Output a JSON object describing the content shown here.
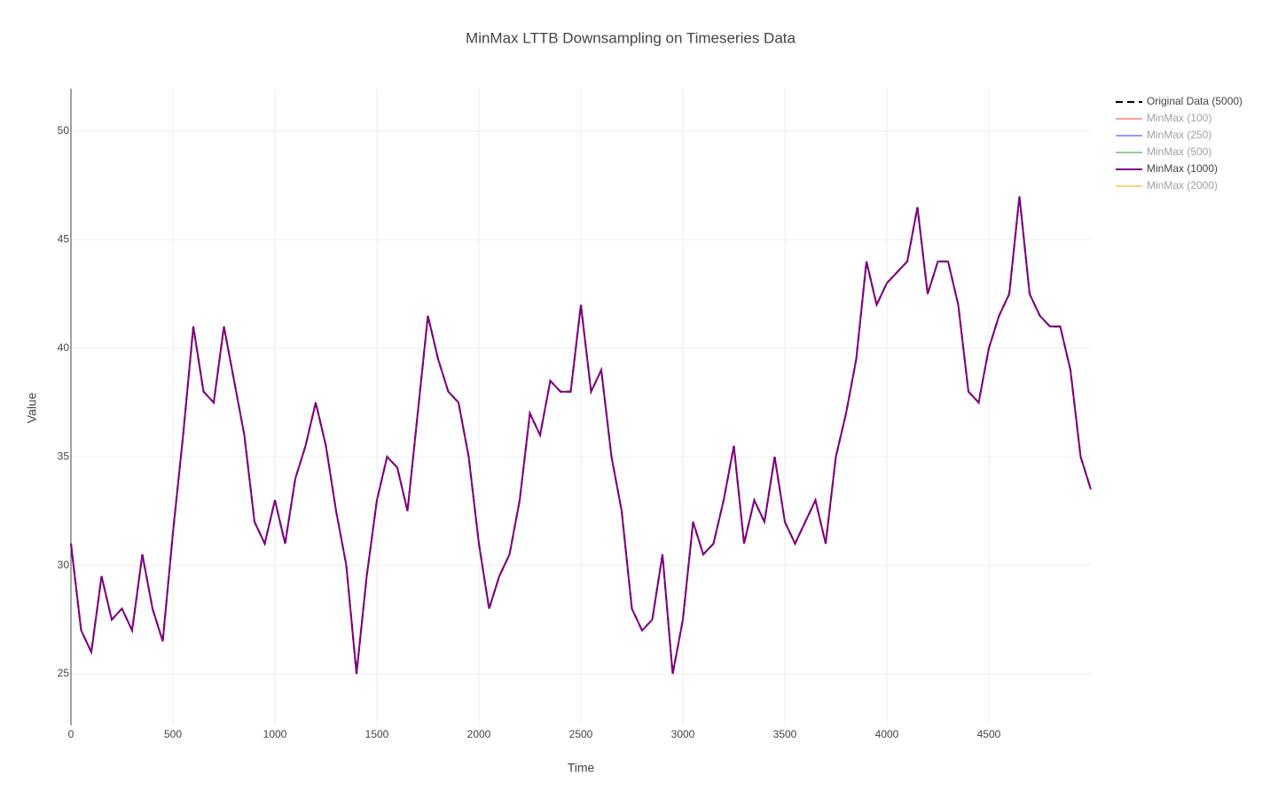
{
  "chart_data": {
    "type": "line",
    "title": "MinMax LTTB Downsampling on Timeseries Data",
    "x_label": "Time",
    "y_label": "Value",
    "xlim": [
      0,
      5000
    ],
    "ylim": [
      22.63,
      51.96
    ],
    "xticks": [
      0,
      500,
      1000,
      1500,
      2000,
      2500,
      3000,
      3500,
      4000,
      4500
    ],
    "yticks": [
      25,
      30,
      35,
      40,
      45,
      50
    ],
    "grid": true,
    "legend": "right",
    "x": [
      0,
      50,
      100,
      150,
      200,
      250,
      300,
      350,
      400,
      450,
      500,
      550,
      600,
      650,
      700,
      750,
      800,
      850,
      900,
      950,
      1000,
      1050,
      1100,
      1150,
      1200,
      1250,
      1300,
      1350,
      1400,
      1450,
      1500,
      1550,
      1600,
      1650,
      1700,
      1750,
      1800,
      1850,
      1900,
      1950,
      2000,
      2050,
      2100,
      2150,
      2200,
      2250,
      2300,
      2350,
      2400,
      2450,
      2500,
      2550,
      2600,
      2650,
      2700,
      2750,
      2800,
      2850,
      2900,
      2950,
      3000,
      3050,
      3100,
      3150,
      3200,
      3250,
      3300,
      3350,
      3400,
      3450,
      3500,
      3550,
      3600,
      3650,
      3700,
      3750,
      3800,
      3850,
      3900,
      3950,
      4000,
      4050,
      4100,
      4150,
      4200,
      4250,
      4300,
      4350,
      4400,
      4450,
      4500,
      4550,
      4600,
      4650,
      4700,
      4750,
      4800,
      4850,
      4900,
      4950,
      5000
    ],
    "series": [
      {
        "name": "Original Data (5000)",
        "color": "#000000",
        "dash": true,
        "visible": true,
        "values": [
          31,
          27,
          26,
          29.5,
          27.5,
          28,
          27,
          30.5,
          28,
          26.5,
          31.5,
          36,
          41,
          38,
          37.5,
          41,
          38.5,
          36,
          32,
          31,
          33,
          31,
          34,
          35.5,
          37.5,
          35.5,
          32.5,
          30,
          25,
          29.5,
          33,
          35,
          34.5,
          32.5,
          37,
          41.5,
          39.5,
          38,
          37.5,
          35,
          31,
          28,
          29.5,
          30.5,
          33,
          37,
          36,
          38.5,
          38,
          38,
          42,
          38,
          39,
          35,
          32.5,
          28,
          27,
          27.5,
          30.5,
          25,
          27.5,
          32,
          30.5,
          31,
          33,
          35.5,
          31,
          33,
          32,
          35,
          32,
          31,
          32,
          33,
          31,
          35,
          37,
          39.5,
          44,
          42,
          43,
          43.5,
          44,
          46.5,
          42.5,
          44,
          44,
          42,
          38,
          37.5,
          40,
          41.5,
          42.5,
          47,
          42.5,
          41.5,
          41,
          41,
          39,
          35,
          33.5
        ]
      },
      {
        "name": "MinMax (100)",
        "color": "#ff4040",
        "visible": false
      },
      {
        "name": "MinMax (250)",
        "color": "#3030ff",
        "visible": false
      },
      {
        "name": "MinMax (500)",
        "color": "#2ca02c",
        "visible": false
      },
      {
        "name": "MinMax (1000)",
        "color": "#800080",
        "dash": false,
        "visible": true,
        "values": [
          31,
          27,
          26,
          29.5,
          27.5,
          28,
          27,
          30.5,
          28,
          26.5,
          31.5,
          36,
          41,
          38,
          37.5,
          41,
          38.5,
          36,
          32,
          31,
          33,
          31,
          34,
          35.5,
          37.5,
          35.5,
          32.5,
          30,
          25,
          29.5,
          33,
          35,
          34.5,
          32.5,
          37,
          41.5,
          39.5,
          38,
          37.5,
          35,
          31,
          28,
          29.5,
          30.5,
          33,
          37,
          36,
          38.5,
          38,
          38,
          42,
          38,
          39,
          35,
          32.5,
          28,
          27,
          27.5,
          30.5,
          25,
          27.5,
          32,
          30.5,
          31,
          33,
          35.5,
          31,
          33,
          32,
          35,
          32,
          31,
          32,
          33,
          31,
          35,
          37,
          39.5,
          44,
          42,
          43,
          43.5,
          44,
          46.5,
          42.5,
          44,
          44,
          42,
          38,
          37.5,
          40,
          41.5,
          42.5,
          47,
          42.5,
          41.5,
          41,
          41,
          39,
          35,
          33.5
        ]
      },
      {
        "name": "MinMax (2000)",
        "color": "#ffa500",
        "visible": false
      }
    ]
  }
}
